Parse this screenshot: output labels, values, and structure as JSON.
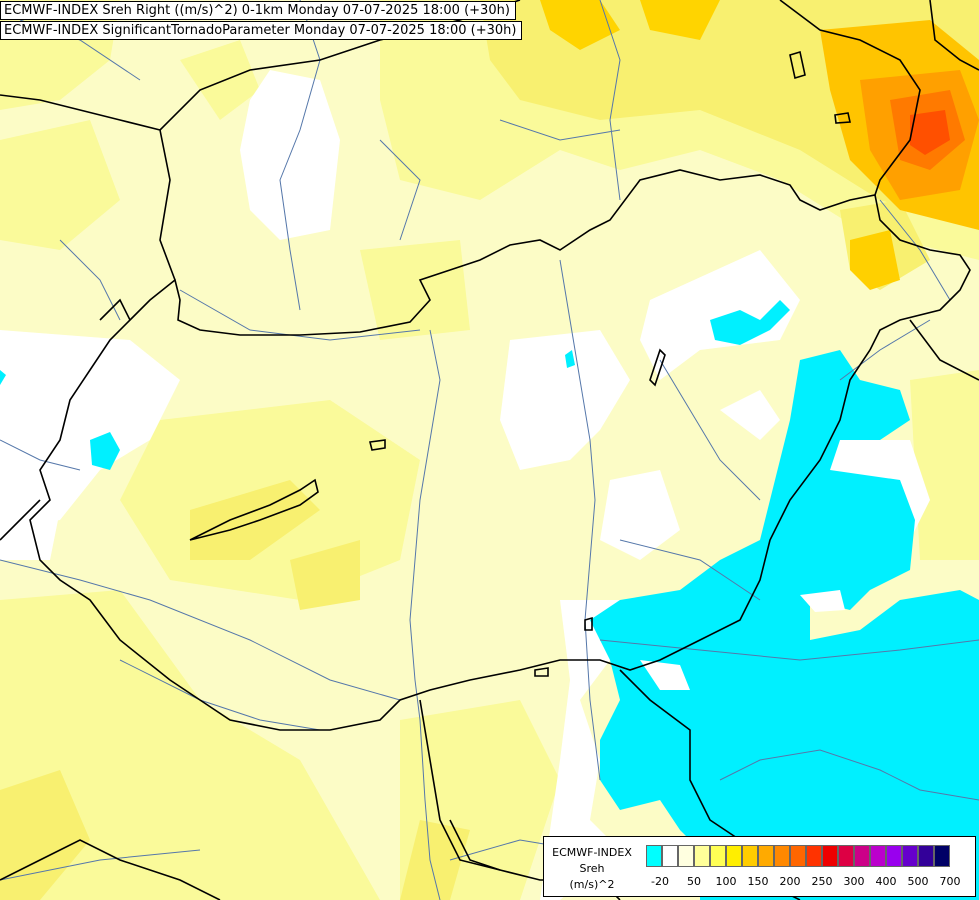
{
  "titles": {
    "line1": "ECMWF-INDEX Sreh Right ((m/s)^2) 0-1km Monday 07-07-2025 18:00 (+30h)",
    "line2": "ECMWF-INDEX SignificantTornadoParameter Monday 07-07-2025 18:00 (+30h)"
  },
  "legend": {
    "line1": "ECMWF-INDEX",
    "line2": "Sreh",
    "line3": "(m/s)^2",
    "swatches": [
      "#00ffff",
      "#ffffff",
      "#ffffe0",
      "#ffff99",
      "#ffff55",
      "#ffee00",
      "#ffcc00",
      "#ffaa00",
      "#ff8800",
      "#ff6600",
      "#ff3300",
      "#ee0000",
      "#dd0044",
      "#cc0088",
      "#bb00cc",
      "#9900ee",
      "#6600cc",
      "#330099",
      "#000066"
    ],
    "ticks": [
      "-20",
      "50",
      "100",
      "150",
      "200",
      "250",
      "300",
      "400",
      "500",
      "700"
    ]
  },
  "colors": {
    "base": "#fcfcc6",
    "light_yellow": "#fafa9a",
    "yellow": "#f8f070",
    "orange": "#ffc400",
    "cyan": "#00f0ff",
    "border": "#000000",
    "river": "#5577aa"
  }
}
